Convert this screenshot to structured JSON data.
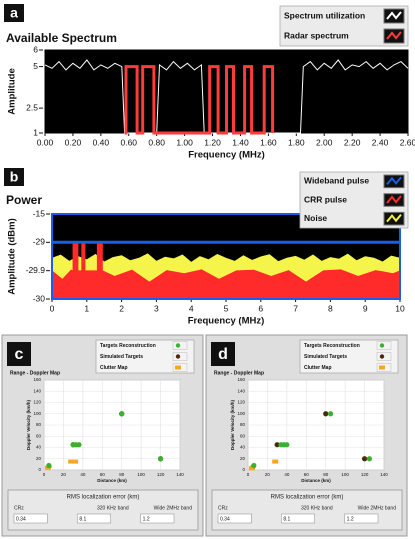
{
  "chart_data": [
    {
      "type": "line",
      "panel": "a",
      "title": "Available Spectrum",
      "xlabel": "Frequency (MHz)",
      "ylabel": "Amplitude",
      "xlim": [
        0,
        2.6
      ],
      "ylim": [
        1,
        6
      ],
      "xticks": [
        {
          "value": 0,
          "label": "0.00"
        },
        {
          "value": 0.2,
          "label": "0.20"
        },
        {
          "value": 0.4,
          "label": "0.40"
        },
        {
          "value": 0.6,
          "label": "0.60"
        },
        {
          "value": 0.8,
          "label": "0.80"
        },
        {
          "value": 1,
          "label": "1.00"
        },
        {
          "value": 1.2,
          "label": "1.20"
        },
        {
          "value": 1.4,
          "label": "1.40"
        },
        {
          "value": 1.6,
          "label": "1.60"
        },
        {
          "value": 1.8,
          "label": "1.80"
        },
        {
          "value": 2,
          "label": "2.00"
        },
        {
          "value": 2.2,
          "label": "2.20"
        },
        {
          "value": 2.4,
          "label": "2.40"
        },
        {
          "value": 2.6,
          "label": "2.60"
        }
      ],
      "yticks": [
        1,
        2.5,
        5,
        6
      ],
      "series": [
        {
          "name": "Spectrum utilization",
          "color": "#ffffff",
          "x": [
            0,
            0.05,
            0.1,
            0.15,
            0.2,
            0.25,
            0.3,
            0.35,
            0.4,
            0.45,
            0.5,
            0.55,
            0.57,
            0.8,
            0.82,
            0.87,
            0.92,
            0.97,
            1.02,
            1.07,
            1.12,
            1.14,
            1.83,
            1.85,
            1.9,
            1.95,
            2,
            2.05,
            2.1,
            2.15,
            2.2,
            2.25,
            2.3,
            2.35,
            2.4,
            2.45,
            2.5,
            2.55,
            2.6
          ],
          "values": [
            5.1,
            4.9,
            5.3,
            4.8,
            5.2,
            4.9,
            5.4,
            4.8,
            5.1,
            4.9,
            5.2,
            5,
            1,
            1,
            5.1,
            4.8,
            5.3,
            4.9,
            5.2,
            4.8,
            5.1,
            1,
            1,
            5,
            5.3,
            4.8,
            5.2,
            4.9,
            5.4,
            4.8,
            5.1,
            5,
            5.3,
            4.9,
            5.2,
            4.8,
            5.1,
            5.3,
            4.9
          ]
        },
        {
          "name": "Radar spectrum",
          "color": "#ff3b3b",
          "x": [
            0.57,
            0.58,
            0.58,
            0.66,
            0.66,
            0.7,
            0.7,
            0.78,
            0.78,
            1.18,
            1.18,
            1.24,
            1.24,
            1.3,
            1.3,
            1.35,
            1.35,
            1.43,
            1.43,
            1.48,
            1.48,
            1.57,
            1.57,
            1.63,
            1.63
          ],
          "values": [
            1,
            1,
            5,
            5,
            1,
            1,
            5,
            5,
            1,
            1,
            5,
            5,
            1,
            1,
            5,
            5,
            1,
            1,
            5,
            5,
            1,
            1,
            5,
            5,
            1
          ]
        }
      ]
    },
    {
      "type": "area",
      "panel": "b",
      "title": "Power",
      "xlabel": "Frequency (MHz)",
      "ylabel": "Amplitude (dBm)",
      "xlim": [
        0,
        10
      ],
      "ylim": [
        -30,
        -15
      ],
      "xticks": [
        0,
        1,
        2,
        3,
        4,
        5,
        6,
        7,
        8,
        9,
        10
      ],
      "yticks": [
        -15,
        -29,
        -29.9,
        -30
      ],
      "series": [
        {
          "name": "Wideband pulse",
          "color": "#1a5fe8",
          "x": [
            0,
            10
          ],
          "values": [
            -29,
            -29
          ]
        },
        {
          "name": "CRR pulse",
          "color": "#ff2a2a",
          "x": [
            0,
            0.3,
            0.55,
            0.6,
            0.6,
            0.75,
            0.75,
            0.85,
            0.85,
            0.95,
            0.95,
            1.3,
            1.3,
            1.45,
            1.45,
            1.8,
            2.3,
            2.8,
            3.3,
            3.8,
            4.3,
            4.8,
            5.3,
            5.8,
            6.3,
            6.8,
            7.3,
            7.8,
            8.3,
            8.8,
            9.3,
            9.8,
            10
          ],
          "values": [
            -29.9,
            -29.93,
            -29.88,
            -29.9,
            -28.8,
            -28.8,
            -29.9,
            -29.9,
            -28.8,
            -28.8,
            -29.9,
            -29.9,
            -28.8,
            -28.8,
            -29.9,
            -29.92,
            -29.88,
            -29.94,
            -29.89,
            -29.91,
            -29.87,
            -29.93,
            -29.9,
            -29.88,
            -29.92,
            -29.89,
            -29.94,
            -29.9,
            -29.87,
            -29.92,
            -29.89,
            -29.91,
            -29.9
          ]
        },
        {
          "name": "Noise",
          "color": "#f4f44a",
          "x": [
            0,
            0.25,
            0.5,
            0.75,
            1,
            1.25,
            1.5,
            1.75,
            2,
            2.25,
            2.5,
            2.75,
            3,
            3.25,
            3.5,
            3.75,
            4,
            4.25,
            4.5,
            4.75,
            5,
            5.25,
            5.5,
            5.75,
            6,
            6.25,
            6.5,
            6.75,
            7,
            7.25,
            7.5,
            7.75,
            8,
            8.25,
            8.5,
            8.75,
            9,
            9.25,
            9.5,
            9.75,
            10
          ],
          "values": [
            -29.5,
            -29.4,
            -29.6,
            -29.45,
            -29.55,
            -29.38,
            -29.62,
            -29.48,
            -29.42,
            -29.58,
            -29.5,
            -29.36,
            -29.6,
            -29.47,
            -29.52,
            -29.4,
            -29.63,
            -29.45,
            -29.55,
            -29.38,
            -29.5,
            -29.6,
            -29.42,
            -29.57,
            -29.46,
            -29.39,
            -29.61,
            -29.5,
            -29.44,
            -29.56,
            -29.4,
            -29.6,
            -29.48,
            -29.53,
            -29.37,
            -29.58,
            -29.45,
            -29.5,
            -29.62,
            -29.43,
            -29.5
          ]
        }
      ]
    },
    {
      "type": "scatter",
      "panel": "c",
      "title": "Range - Doppler Map",
      "xlabel": "Distance (km)",
      "ylabel": "Doppler Velocity (km/h)",
      "xlim": [
        0,
        140
      ],
      "ylim": [
        0,
        160
      ],
      "grid": true,
      "xticks": [
        0,
        20,
        40,
        60,
        80,
        100,
        120,
        140
      ],
      "yticks": [
        0,
        20,
        40,
        60,
        80,
        100,
        120,
        140,
        160
      ],
      "series": [
        {
          "name": "Targets Reconstruction",
          "color": "#3cb030",
          "marker": "circle",
          "x": [
            5,
            30,
            33,
            36,
            80,
            120
          ],
          "values": [
            8,
            45,
            45,
            45,
            100,
            20
          ]
        },
        {
          "name": "Simulated Targets",
          "color": "#4a2a10",
          "marker": "circle",
          "x": [
            5,
            30,
            80,
            120
          ],
          "values": [
            6,
            45,
            100,
            20
          ]
        },
        {
          "name": "Clutter Map",
          "color": "#f5a623",
          "marker": "square",
          "x": [
            4,
            28,
            32
          ],
          "values": [
            4,
            15,
            15
          ]
        }
      ],
      "rms": {
        "title": "RMS localization error (km)",
        "fields": [
          {
            "label": "CRz",
            "value": 0.34
          },
          {
            "label": "320 KHz band",
            "value": 8.1
          },
          {
            "label": "Wide 2MHz band",
            "value": 1.2
          }
        ]
      }
    },
    {
      "type": "scatter",
      "panel": "d",
      "title": "Range - Doppler Map",
      "xlabel": "Distance (km)",
      "ylabel": "Doppler Velocity (km/h)",
      "xlim": [
        0,
        140
      ],
      "ylim": [
        0,
        160
      ],
      "grid": true,
      "xticks": [
        0,
        20,
        40,
        60,
        80,
        100,
        120,
        140
      ],
      "yticks": [
        0,
        20,
        40,
        60,
        80,
        100,
        120,
        140,
        160
      ],
      "series": [
        {
          "name": "Targets Reconstruction",
          "color": "#3cb030",
          "marker": "circle",
          "x": [
            6,
            34,
            37,
            40,
            85,
            125
          ],
          "values": [
            8,
            45,
            45,
            45,
            100,
            20
          ]
        },
        {
          "name": "Simulated Targets",
          "color": "#4a2a10",
          "marker": "circle",
          "x": [
            5,
            30,
            80,
            120
          ],
          "values": [
            5,
            45,
            100,
            20
          ]
        },
        {
          "name": "Clutter Map",
          "color": "#f5a623",
          "marker": "square",
          "x": [
            4,
            28
          ],
          "values": [
            3,
            15
          ]
        }
      ],
      "rms": {
        "title": "RMS localization error (km)",
        "fields": [
          {
            "label": "CRz",
            "value": 0.34
          },
          {
            "label": "320 KHz band",
            "value": 8.1
          },
          {
            "label": "Wide 2MHz band",
            "value": 1.2
          }
        ]
      }
    }
  ]
}
